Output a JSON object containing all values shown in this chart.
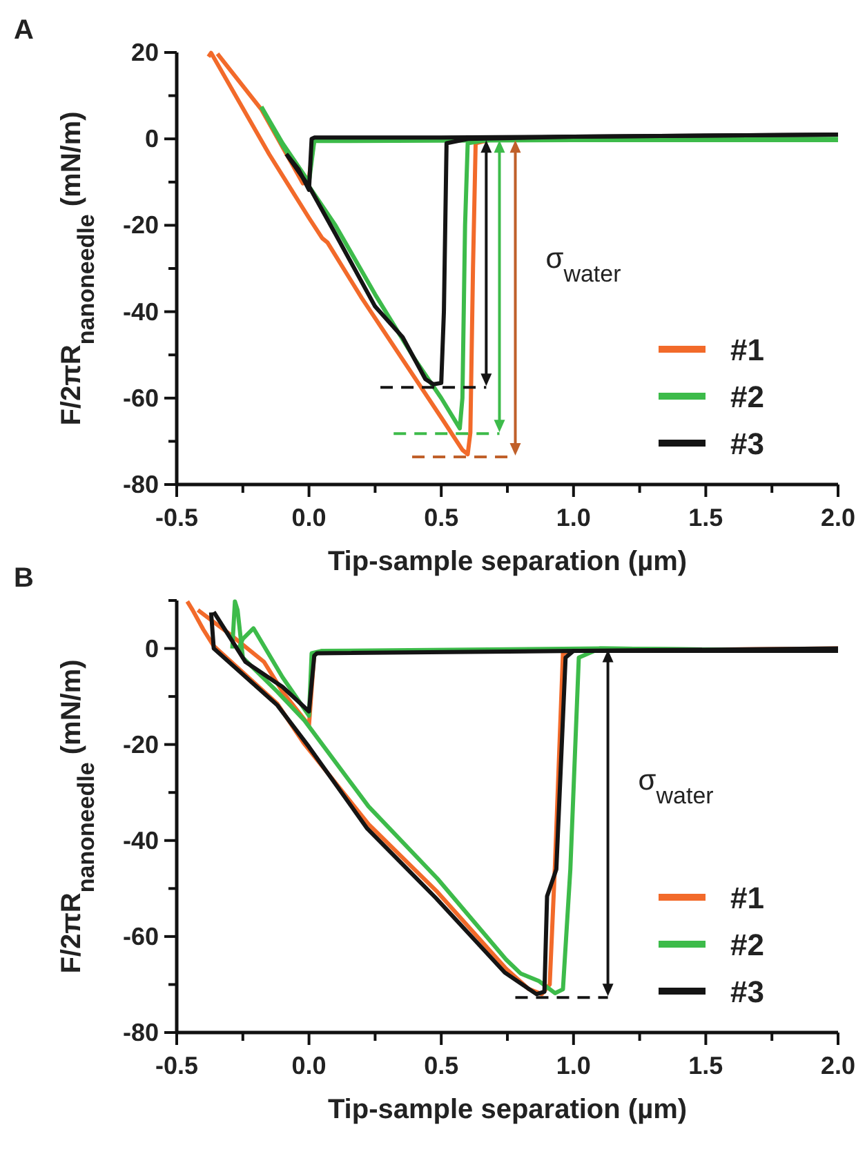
{
  "chart_data": [
    {
      "type": "line",
      "xlabel": "Tip-sample separation (µm)",
      "ylabel": "F/2πR$_{nanoneedle}$ (mN/m)",
      "xlim": [
        -0.5,
        2.0
      ],
      "ylim": [
        -80,
        20
      ],
      "xticks": [
        -0.5,
        {
          "value": -0.25,
          "label": null
        },
        {
          "value": 0,
          "label": "0.0"
        },
        {
          "value": 0.25,
          "label": null
        },
        0.5,
        {
          "value": 0.75,
          "label": null
        },
        {
          "value": 1,
          "label": "1.0"
        },
        {
          "value": 1.25,
          "label": null
        },
        1.5,
        {
          "value": 1.75,
          "label": null
        },
        {
          "value": 2,
          "label": "2.0"
        }
      ],
      "yticks": [
        -80,
        {
          "value": -70,
          "label": null
        },
        -60,
        {
          "value": -50,
          "label": null
        },
        -40,
        {
          "value": -30,
          "label": null
        },
        -20,
        {
          "value": -10,
          "label": null
        },
        0,
        {
          "value": 10,
          "label": null
        },
        20
      ],
      "grid": false,
      "legend": "bottom right",
      "annotations": [
        "A",
        "σ$_{water}$"
      ],
      "series": [
        {
          "name": "#1",
          "color": "#f26a2a",
          "x": [
            -0.38,
            -0.37,
            -0.15,
            0.0,
            0.05,
            0.07,
            0.2,
            0.35,
            0.5,
            0.58,
            0.6,
            0.61,
            0.62,
            0.63,
            0.7
          ],
          "values": [
            19,
            19.9,
            -3.6,
            -18.3,
            -23,
            -24,
            -36.9,
            -50.7,
            -64.5,
            -72,
            -73,
            -68,
            -30,
            -1,
            0
          ]
        },
        {
          "color": "#f26a2a",
          "x": [
            -0.346,
            -0.18,
            -0.023,
            0.0,
            0.02
          ],
          "values": [
            19.7,
            6.8,
            -10.3,
            -9,
            0
          ]
        },
        {
          "name": "#2",
          "color": "#3dbb4a",
          "x": [
            -0.18,
            -0.1,
            0.0,
            0.1,
            0.25,
            0.4,
            0.5,
            0.56,
            0.57,
            0.58,
            0.59,
            0.6,
            0.7,
            2.0
          ],
          "values": [
            7.4,
            -1.5,
            -11,
            -20,
            -36,
            -51,
            -60,
            -66,
            -67,
            -60,
            -20,
            -1,
            0,
            0
          ]
        },
        {
          "color": "#3dbb4a",
          "x": [
            -0.18,
            -0.1,
            0.0,
            0.02,
            0.05,
            1.0,
            2.0
          ],
          "values": [
            7.4,
            -1,
            -10,
            -0.5,
            -0.5,
            -0.3,
            -0.3
          ]
        },
        {
          "name": "#3",
          "color": "#141414",
          "x": [
            -0.08,
            0.0,
            0.1,
            0.25,
            0.354,
            0.44,
            0.47,
            0.5,
            0.51,
            0.52,
            0.6,
            1.0,
            2.0
          ],
          "values": [
            -4,
            -11,
            -22,
            -38.8,
            -45.9,
            -55.6,
            -56.8,
            -56.5,
            -40,
            -1,
            0,
            0.5,
            1
          ]
        },
        {
          "color": "#141414",
          "x": [
            -0.086,
            -0.04,
            0.0,
            0.01,
            0.02,
            0.5,
            1.0,
            2.0
          ],
          "values": [
            -3.5,
            -7,
            -11.8,
            0,
            0.3,
            0.3,
            0.5,
            1
          ]
        },
        {
          "color": "#141414",
          "line_style": "dashed",
          "x": [
            0.27,
            0.67
          ],
          "values": [
            -57.5,
            -57.5
          ]
        },
        {
          "color": "#3dbb4a",
          "line_style": "dashed",
          "x": [
            0.32,
            0.72
          ],
          "values": [
            -68.2,
            -68.2
          ]
        },
        {
          "color": "#c0602a",
          "line_style": "dashed",
          "x": [
            0.39,
            0.78
          ],
          "values": [
            -73.6,
            -73.6
          ]
        }
      ]
    },
    {
      "type": "line",
      "xlabel": "Tip-sample separation (µm)",
      "ylabel": "F/2πR$_{nanoneedle}$ (mN/m)",
      "xlim": [
        -0.5,
        2.0
      ],
      "ylim": [
        -80,
        10
      ],
      "xticks": [
        -0.5,
        {
          "value": -0.25,
          "label": null
        },
        {
          "value": 0,
          "label": "0.0"
        },
        {
          "value": 0.25,
          "label": null
        },
        0.5,
        {
          "value": 0.75,
          "label": null
        },
        {
          "value": 1,
          "label": "1.0"
        },
        {
          "value": 1.25,
          "label": null
        },
        1.5,
        {
          "value": 1.75,
          "label": null
        },
        {
          "value": 2,
          "label": "2.0"
        }
      ],
      "yticks": [
        -80,
        {
          "value": -70,
          "label": null
        },
        -60,
        {
          "value": -50,
          "label": null
        },
        -40,
        {
          "value": -30,
          "label": null
        },
        -20,
        {
          "value": -10,
          "label": null
        },
        0,
        {
          "value": 10,
          "label": null
        }
      ],
      "grid": false,
      "legend": "bottom right",
      "annotations": [
        "B",
        "σ$_{water}$"
      ],
      "series": [
        {
          "name": "#1",
          "color": "#f26a2a",
          "x": [
            -0.46,
            -0.44,
            -0.4,
            -0.36,
            -0.12,
            -0.02,
            0.225,
            0.485,
            0.745,
            0.83,
            0.88,
            0.91,
            0.93,
            0.96,
            1.0,
            2.0
          ],
          "values": [
            9.8,
            8,
            4,
            0.5,
            -11.5,
            -19.7,
            -36.6,
            -50.7,
            -66.7,
            -70.9,
            -72,
            -70,
            -45,
            -1,
            -0.5,
            0
          ]
        },
        {
          "color": "#f26a2a",
          "x": [
            -0.42,
            -0.3,
            -0.17,
            -0.1,
            0.0,
            0.02,
            0.05
          ],
          "values": [
            8,
            3,
            -2.8,
            -9,
            -16,
            -1,
            -0.5
          ]
        },
        {
          "name": "#2",
          "color": "#3dbb4a",
          "x": [
            -0.29,
            -0.28,
            -0.27,
            -0.25,
            -0.12,
            -0.017,
            0.225,
            0.485,
            0.745,
            0.8,
            0.87,
            0.93,
            0.96,
            0.988,
            1.02,
            1.1,
            2.0
          ],
          "values": [
            0,
            9.8,
            8,
            -1.9,
            -9,
            -15,
            -32.9,
            -47.9,
            -64.8,
            -67.7,
            -69.3,
            -71.8,
            -71,
            -46,
            -1.9,
            0,
            -0.5
          ]
        },
        {
          "color": "#3dbb4a",
          "x": [
            -0.27,
            -0.25,
            -0.21,
            -0.1,
            0.0,
            0.01,
            0.05,
            1.1,
            2.0
          ],
          "values": [
            -0.5,
            2,
            4.2,
            -6,
            -14,
            -1,
            -0.5,
            0,
            -0.5
          ]
        },
        {
          "name": "#3",
          "color": "#141414",
          "x": [
            -0.37,
            -0.36,
            -0.12,
            0.0,
            0.22,
            0.48,
            0.74,
            0.86,
            0.89,
            0.9,
            0.935,
            0.97,
            1.0,
            2.0
          ],
          "values": [
            7.5,
            0,
            -11.8,
            -20.5,
            -37.5,
            -52,
            -67.5,
            -72,
            -71.5,
            -51.6,
            -46,
            -1.9,
            -0.5,
            -0.5
          ]
        },
        {
          "color": "#141414",
          "x": [
            -0.36,
            -0.24,
            -0.1,
            0.0,
            0.02,
            0.03,
            2.0
          ],
          "values": [
            7.6,
            -2.8,
            -8,
            -13.1,
            -1.5,
            -1,
            0
          ]
        },
        {
          "color": "#141414",
          "line_style": "dashed",
          "x": [
            0.78,
            1.13
          ],
          "values": [
            -72.7,
            -72.7
          ]
        }
      ]
    }
  ]
}
